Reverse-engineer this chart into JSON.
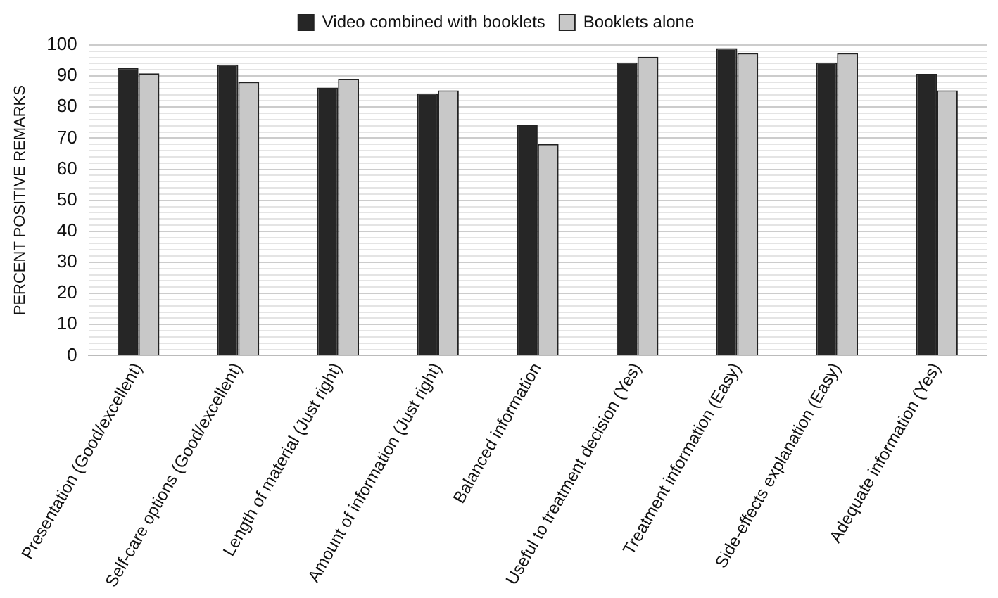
{
  "chart_data": {
    "type": "bar",
    "ylabel": "PERCENT POSITIVE REMARKS",
    "categories": [
      "Presentation (Good/excellent)",
      "Self-care options (Good/excellent)",
      "Length of material (Just right)",
      "Amount of information (Just right)",
      "Balanced information",
      "Useful to treatment decision (Yes)",
      "Treatment information (Easy)",
      "Side-effects explanation (Easy)",
      "Adequate information (Yes)"
    ],
    "series": [
      {
        "name": "Video combined with booklets",
        "color": "#262626",
        "values": [
          92.6,
          93.7,
          86.3,
          84.4,
          74.4,
          94.4,
          99.0,
          94.4,
          90.7
        ]
      },
      {
        "name": "Booklets alone",
        "color": "#c8c8c8",
        "values": [
          90.9,
          88.1,
          89.1,
          85.4,
          68.1,
          96.2,
          97.4,
          97.4,
          85.4
        ]
      }
    ],
    "ylim": [
      0,
      100
    ],
    "yticks": [
      0,
      {
        "value": 2,
        "label": null
      },
      {
        "value": 4,
        "label": null
      },
      {
        "value": 6,
        "label": null
      },
      {
        "value": 8,
        "label": null
      },
      10,
      {
        "value": 12,
        "label": null
      },
      {
        "value": 14,
        "label": null
      },
      {
        "value": 16,
        "label": null
      },
      {
        "value": 18,
        "label": null
      },
      20,
      {
        "value": 22,
        "label": null
      },
      {
        "value": 24,
        "label": null
      },
      {
        "value": 26,
        "label": null
      },
      {
        "value": 28,
        "label": null
      },
      30,
      {
        "value": 32,
        "label": null
      },
      {
        "value": 34,
        "label": null
      },
      {
        "value": 36,
        "label": null
      },
      {
        "value": 38,
        "label": null
      },
      40,
      {
        "value": 42,
        "label": null
      },
      {
        "value": 44,
        "label": null
      },
      {
        "value": 46,
        "label": null
      },
      {
        "value": 48,
        "label": null
      },
      50,
      {
        "value": 52,
        "label": null
      },
      {
        "value": 54,
        "label": null
      },
      {
        "value": 56,
        "label": null
      },
      {
        "value": 58,
        "label": null
      },
      60,
      {
        "value": 62,
        "label": null
      },
      {
        "value": 64,
        "label": null
      },
      {
        "value": 66,
        "label": null
      },
      {
        "value": 68,
        "label": null
      },
      70,
      {
        "value": 72,
        "label": null
      },
      {
        "value": 74,
        "label": null
      },
      {
        "value": 76,
        "label": null
      },
      {
        "value": 78,
        "label": null
      },
      80,
      {
        "value": 82,
        "label": null
      },
      {
        "value": 84,
        "label": null
      },
      {
        "value": 86,
        "label": null
      },
      {
        "value": 88,
        "label": null
      },
      90,
      {
        "value": 92,
        "label": null
      },
      {
        "value": 94,
        "label": null
      },
      {
        "value": 96,
        "label": null
      },
      {
        "value": 98,
        "label": null
      },
      100
    ],
    "grid": "y",
    "legend": "top"
  }
}
